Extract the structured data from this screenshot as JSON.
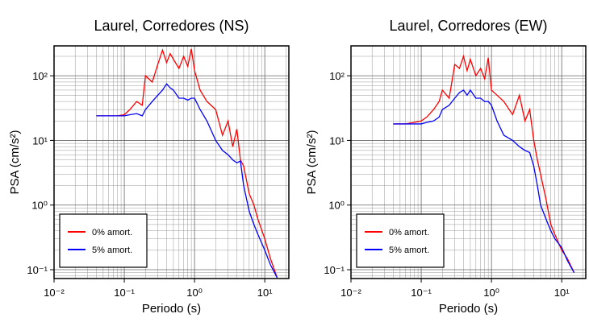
{
  "chart_data": [
    {
      "type": "line",
      "title": "Laurel, Corredores (NS)",
      "x_label": "Periodo (s)",
      "y_label": "PSA (cm/s²)",
      "x_log": true,
      "y_log": true,
      "grid": true,
      "legend": "lower left",
      "xlim": [
        0.01,
        22
      ],
      "ylim": [
        0.073,
        290
      ],
      "xticks": [
        {
          "value": 0.01,
          "label": "10⁻²"
        },
        {
          "value": 0.1,
          "label": "10⁻¹"
        },
        {
          "value": 1,
          "label": "10⁰"
        },
        {
          "value": 10,
          "label": "10¹"
        }
      ],
      "yticks": [
        {
          "value": 0.1,
          "label": "10⁻¹"
        },
        {
          "value": 1,
          "label": "10⁰"
        },
        {
          "value": 10,
          "label": "10¹"
        },
        {
          "value": 100,
          "label": "10²"
        }
      ],
      "x": [
        0.04,
        0.06,
        0.08,
        0.1,
        0.12,
        0.15,
        0.18,
        0.2,
        0.25,
        0.3,
        0.35,
        0.4,
        0.45,
        0.5,
        0.6,
        0.7,
        0.8,
        0.9,
        1.0,
        1.2,
        1.5,
        2,
        2.5,
        3,
        3.5,
        4,
        4.5,
        5,
        6,
        7,
        8,
        10,
        12,
        15
      ],
      "series": [
        {
          "name": "0% amort.",
          "color": "#ff0000",
          "values": [
            24,
            24,
            24,
            25,
            30,
            40,
            35,
            100,
            80,
            150,
            250,
            160,
            220,
            180,
            130,
            200,
            140,
            260,
            120,
            60,
            40,
            30,
            12,
            20,
            8,
            15,
            5,
            4,
            1.5,
            1.0,
            0.6,
            0.3,
            0.15,
            0.075
          ]
        },
        {
          "name": "5% amort.",
          "color": "#0000ff",
          "values": [
            24,
            24,
            24,
            24,
            25,
            26,
            24,
            30,
            40,
            50,
            60,
            75,
            65,
            60,
            45,
            45,
            42,
            45,
            45,
            30,
            20,
            10,
            7,
            6,
            5,
            4.5,
            4.8,
            2,
            0.8,
            0.5,
            0.35,
            0.2,
            0.12,
            0.075
          ]
        }
      ]
    },
    {
      "type": "line",
      "title": "Laurel, Corredores (EW)",
      "x_label": "Periodo (s)",
      "y_label": "PSA (cm/s²)",
      "x_log": true,
      "y_log": true,
      "grid": true,
      "legend": "lower left",
      "xlim": [
        0.01,
        22
      ],
      "ylim": [
        0.073,
        290
      ],
      "xticks": [
        {
          "value": 0.01,
          "label": "10⁻²"
        },
        {
          "value": 0.1,
          "label": "10⁻¹"
        },
        {
          "value": 1,
          "label": "10⁰"
        },
        {
          "value": 10,
          "label": "10¹"
        }
      ],
      "yticks": [
        {
          "value": 0.1,
          "label": "10⁻¹"
        },
        {
          "value": 1,
          "label": "10⁰"
        },
        {
          "value": 10,
          "label": "10¹"
        },
        {
          "value": 100,
          "label": "10²"
        }
      ],
      "x": [
        0.04,
        0.06,
        0.08,
        0.1,
        0.12,
        0.15,
        0.18,
        0.2,
        0.25,
        0.3,
        0.35,
        0.4,
        0.45,
        0.5,
        0.6,
        0.7,
        0.8,
        0.9,
        1.0,
        1.2,
        1.5,
        2,
        2.5,
        3,
        3.5,
        4,
        4.5,
        5,
        6,
        7,
        8,
        10,
        12,
        15
      ],
      "series": [
        {
          "name": "0% amort.",
          "color": "#ff0000",
          "values": [
            18,
            18,
            19,
            20,
            23,
            30,
            40,
            60,
            45,
            150,
            130,
            200,
            120,
            180,
            100,
            130,
            90,
            190,
            60,
            50,
            40,
            25,
            50,
            20,
            30,
            10,
            5,
            3,
            1.2,
            0.5,
            0.35,
            0.2,
            0.15,
            0.09
          ]
        },
        {
          "name": "5% amort.",
          "color": "#0000ff",
          "values": [
            18,
            18,
            18,
            18,
            19,
            20,
            23,
            30,
            35,
            45,
            55,
            60,
            50,
            60,
            45,
            45,
            40,
            40,
            35,
            20,
            12,
            10,
            8,
            7,
            6.5,
            4,
            2,
            1.0,
            0.6,
            0.4,
            0.3,
            0.22,
            0.14,
            0.09
          ]
        }
      ]
    }
  ]
}
